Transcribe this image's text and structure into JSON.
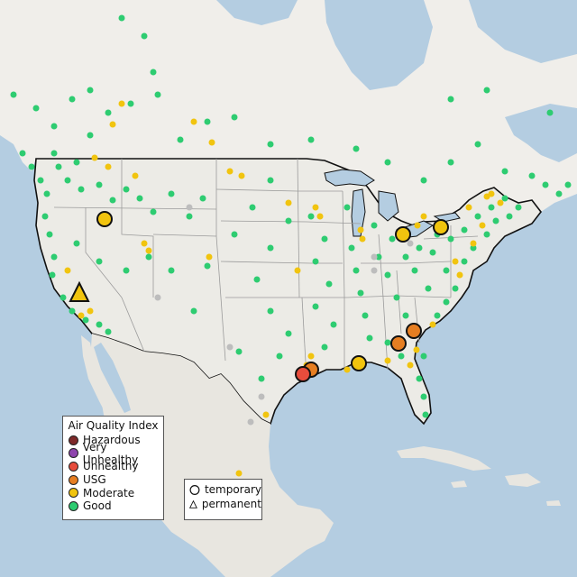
{
  "legend": {
    "title": "Air Quality Index",
    "categories": [
      {
        "label": "Hazardous",
        "color": "#7e2a2a"
      },
      {
        "label": "Very Unhealthy",
        "color": "#8e44ad"
      },
      {
        "label": "Unhealthy",
        "color": "#e74c3c"
      },
      {
        "label": "USG",
        "color": "#e67e22"
      },
      {
        "label": "Moderate",
        "color": "#f1c40f"
      },
      {
        "label": "Good",
        "color": "#2ecc71"
      }
    ]
  },
  "monitor_types": [
    {
      "label": "temporary",
      "symbol": "circle-icon"
    },
    {
      "label": "permanent",
      "symbol": "triangle-icon"
    }
  ],
  "colors": {
    "ocean": "#b4cde1",
    "land": "#ecebe6",
    "canada_land": "#f0eeea",
    "mexico_land": "#e8e6e0",
    "border": "#111111",
    "state_line": "#9b9b9b",
    "no_data": "#bdbdbd"
  }
}
